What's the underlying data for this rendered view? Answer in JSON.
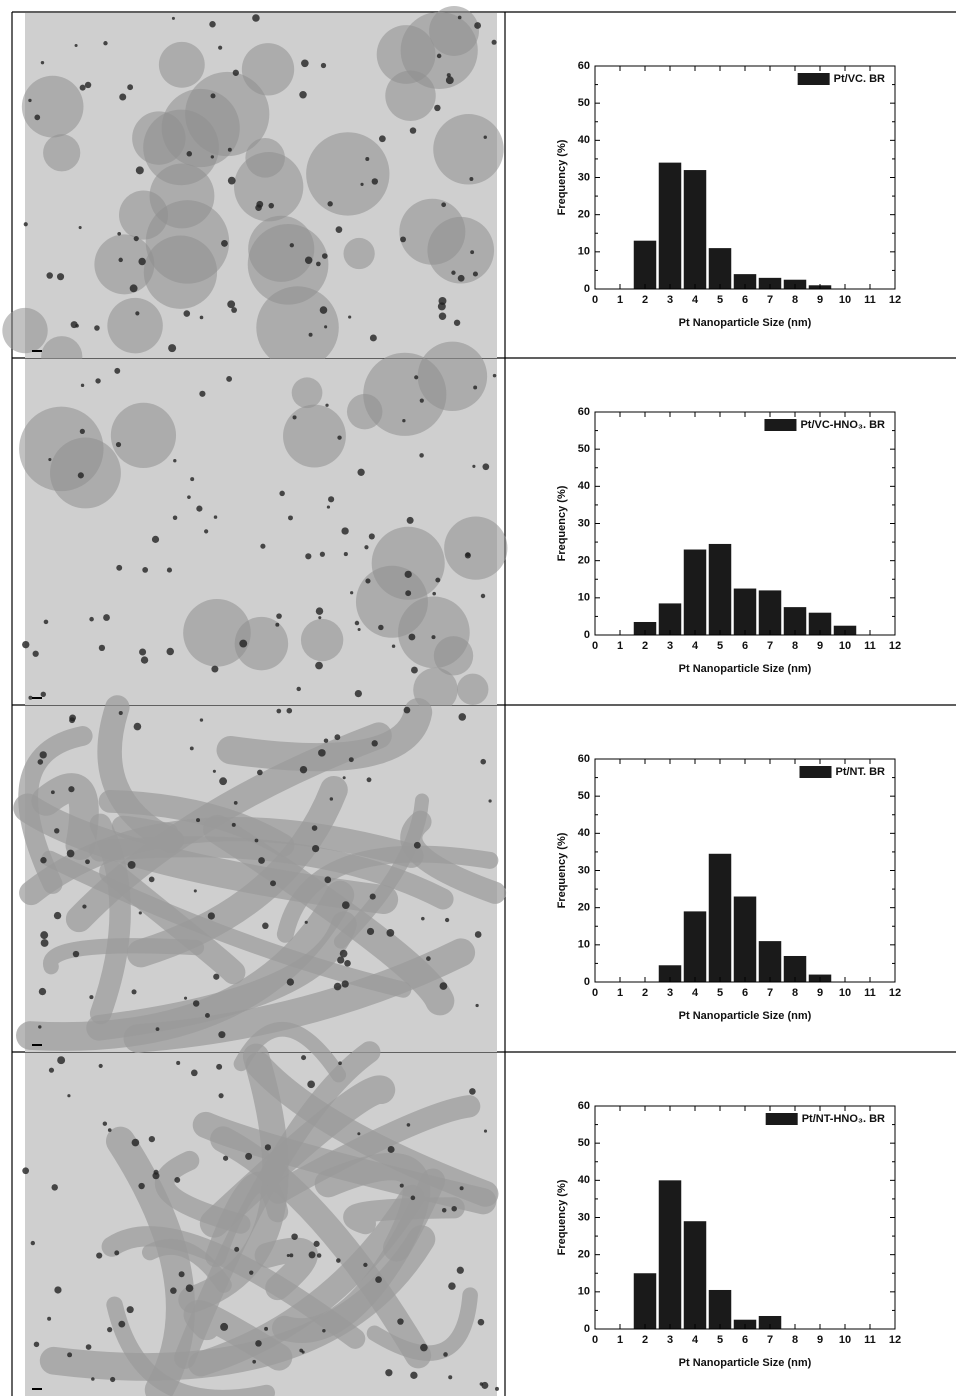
{
  "chart_data": [
    {
      "type": "bar",
      "x": [
        2,
        3,
        4,
        5,
        6,
        7,
        8,
        9
      ],
      "series": [
        {
          "name": "Pt/VC. BR",
          "color": "#1a1a1a",
          "values": [
            13,
            34,
            32,
            11,
            4,
            3,
            2.5,
            1
          ]
        }
      ],
      "xlabel": "Pt Nanoparticle Size (nm)",
      "ylabel": "Frequency (%)",
      "xlim": [
        0,
        12
      ],
      "ylim": [
        0,
        60
      ],
      "xticks": [
        0,
        1,
        2,
        3,
        4,
        5,
        6,
        7,
        8,
        9,
        10,
        11,
        12
      ],
      "yticks": [
        0,
        10,
        20,
        30,
        40,
        50,
        60
      ],
      "legend": "upper right"
    },
    {
      "type": "bar",
      "x": [
        2,
        3,
        4,
        5,
        6,
        7,
        8,
        9,
        10
      ],
      "series": [
        {
          "name": "Pt/VC-HNO₃. BR",
          "color": "#1a1a1a",
          "values": [
            3.5,
            8.5,
            23,
            24.5,
            12.5,
            12,
            7.5,
            6,
            2.5
          ]
        }
      ],
      "xlabel": "Pt Nanoparticle Size (nm)",
      "ylabel": "Frequency (%)",
      "xlim": [
        0,
        12
      ],
      "ylim": [
        0,
        60
      ],
      "xticks": [
        0,
        1,
        2,
        3,
        4,
        5,
        6,
        7,
        8,
        9,
        10,
        11,
        12
      ],
      "yticks": [
        0,
        10,
        20,
        30,
        40,
        50,
        60
      ],
      "legend": "upper right"
    },
    {
      "type": "bar",
      "x": [
        3,
        4,
        5,
        6,
        7,
        8,
        9
      ],
      "series": [
        {
          "name": "Pt/NT. BR",
          "color": "#1a1a1a",
          "values": [
            4.5,
            19,
            34.5,
            23,
            11,
            7,
            2
          ]
        }
      ],
      "xlabel": "Pt Nanoparticle Size (nm)",
      "ylabel": "Frequency (%)",
      "xlim": [
        0,
        12
      ],
      "ylim": [
        0,
        60
      ],
      "xticks": [
        0,
        1,
        2,
        3,
        4,
        5,
        6,
        7,
        8,
        9,
        10,
        11,
        12
      ],
      "yticks": [
        0,
        10,
        20,
        30,
        40,
        50,
        60
      ],
      "legend": "upper right"
    },
    {
      "type": "bar",
      "x": [
        2,
        3,
        4,
        5,
        6,
        7
      ],
      "series": [
        {
          "name": "Pt/NT-HNO₃. BR",
          "color": "#1a1a1a",
          "values": [
            15,
            40,
            29,
            10.5,
            2.5,
            3.5
          ]
        }
      ],
      "xlabel": "Pt Nanoparticle Size (nm)",
      "ylabel": "Frequency (%)",
      "xlim": [
        0,
        12
      ],
      "ylim": [
        0,
        60
      ],
      "xticks": [
        0,
        1,
        2,
        3,
        4,
        5,
        6,
        7,
        8,
        9,
        10,
        11,
        12
      ],
      "yticks": [
        0,
        10,
        20,
        30,
        40,
        50,
        60
      ],
      "legend": "upper right"
    }
  ]
}
